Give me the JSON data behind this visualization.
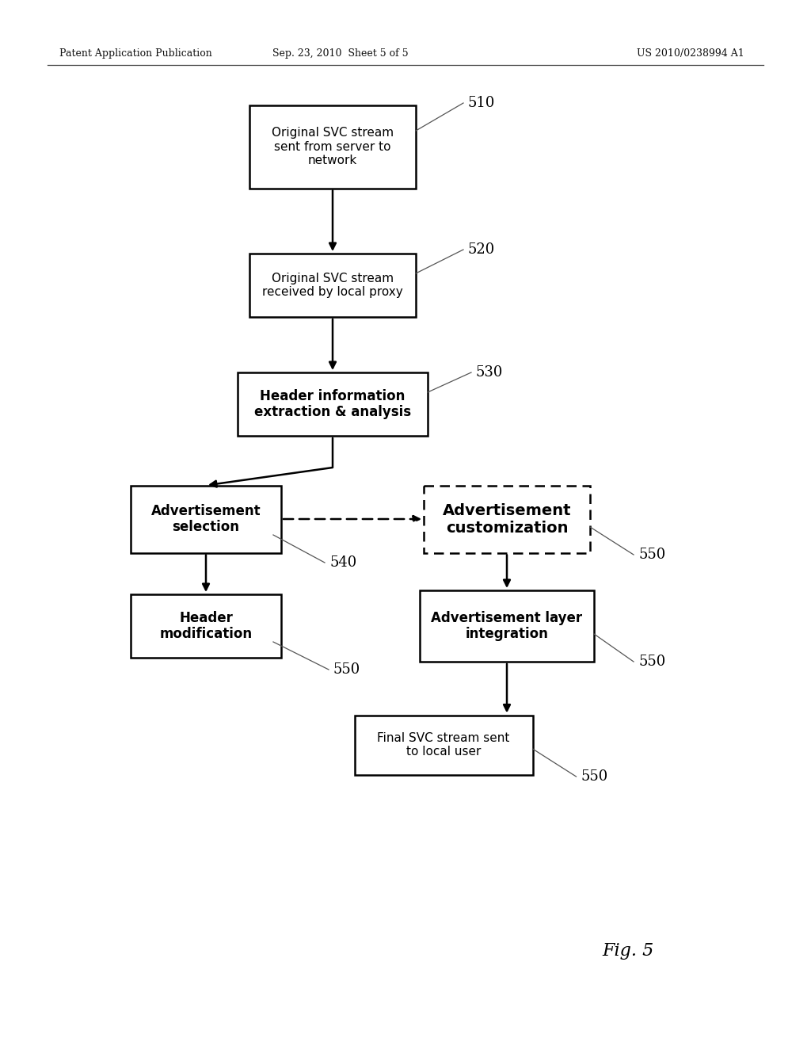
{
  "header_left": "Patent Application Publication",
  "header_mid": "Sep. 23, 2010  Sheet 5 of 5",
  "header_right": "US 2010/0238994 A1",
  "fig_label": "Fig. 5",
  "bg_color": "#ffffff"
}
